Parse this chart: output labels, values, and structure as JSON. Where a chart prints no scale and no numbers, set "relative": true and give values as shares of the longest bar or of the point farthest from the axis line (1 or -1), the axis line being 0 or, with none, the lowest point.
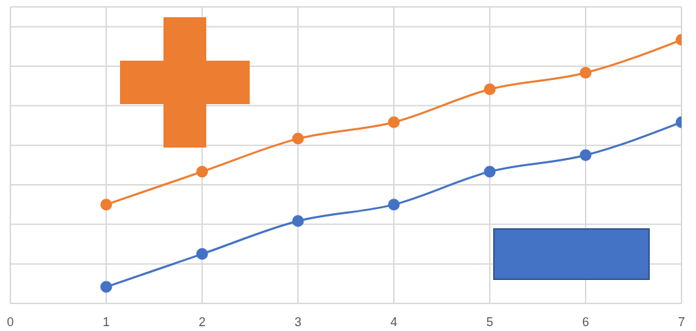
{
  "chart_data": {
    "type": "line",
    "relative": true,
    "x": [
      1,
      2,
      3,
      4,
      5,
      6,
      7
    ],
    "xlim": [
      0,
      7
    ],
    "xticks": [
      0,
      1,
      2,
      3,
      4,
      5,
      6,
      7
    ],
    "grid": true,
    "marker": "circle",
    "line_style": "solid",
    "series": [
      {
        "color": "#ed7d31",
        "values": [
          0.375,
          0.5,
          0.625,
          0.6875,
          0.8125,
          0.875,
          1
        ]
      },
      {
        "color": "#4472c4",
        "values": [
          0.0625,
          0.1875,
          0.3125,
          0.375,
          0.5,
          0.5625,
          0.6875
        ]
      }
    ]
  }
}
